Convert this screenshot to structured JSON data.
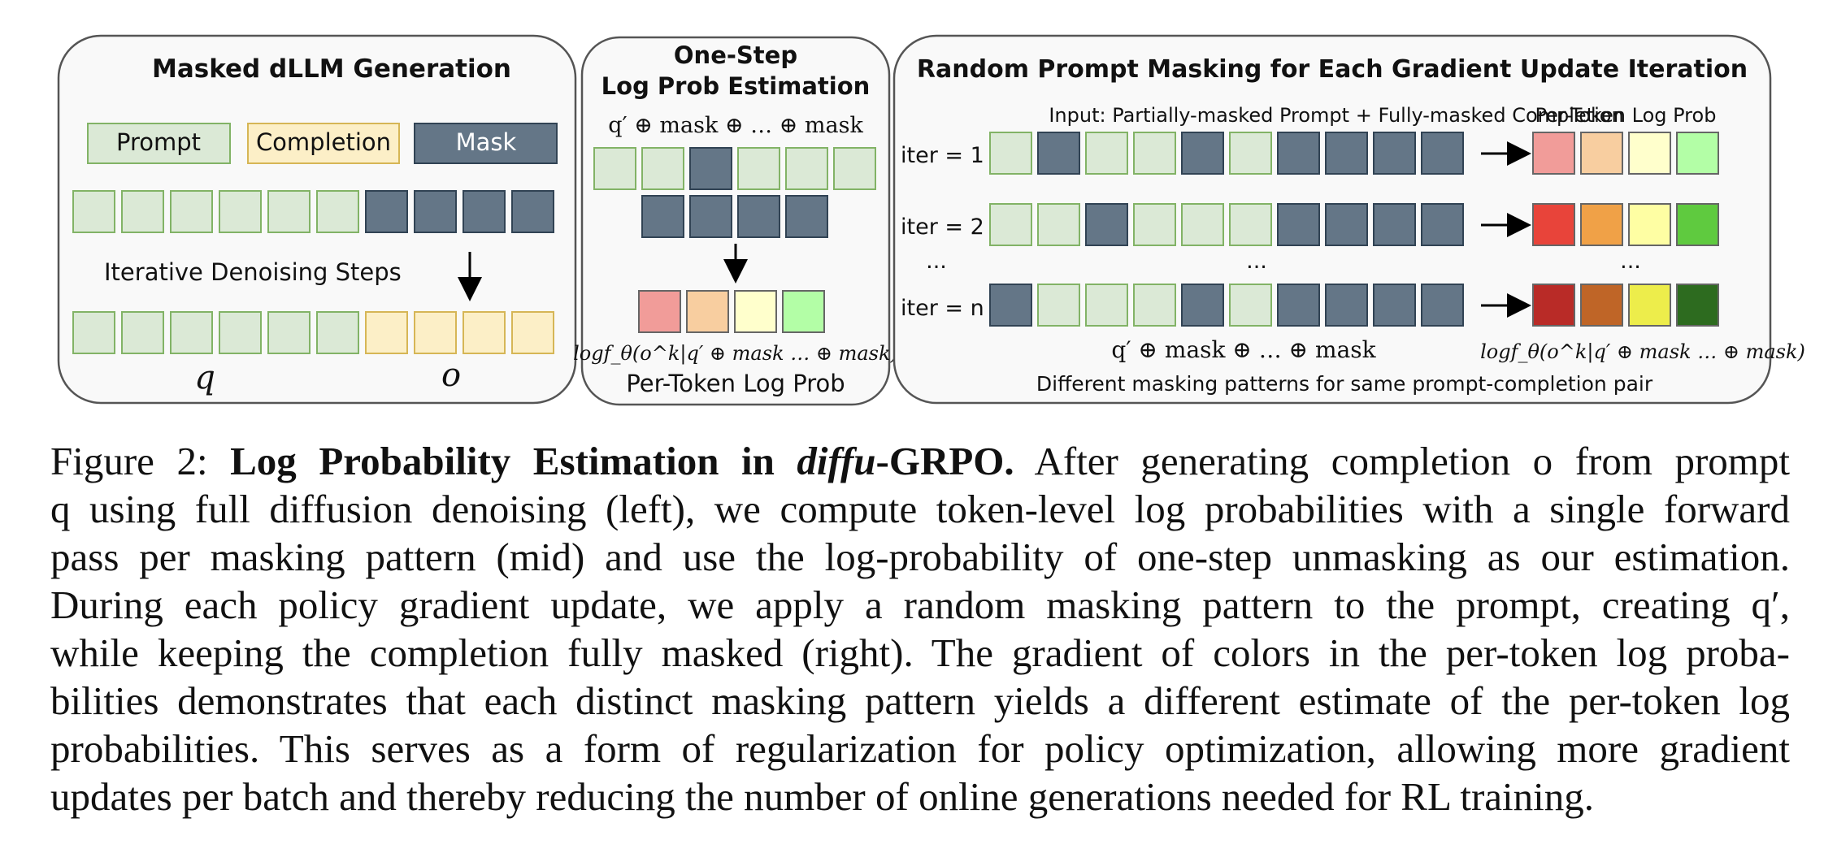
{
  "panels": {
    "left": {
      "title": "Masked dLLM Generation",
      "legend": {
        "prompt": "Prompt",
        "completion": "Completion",
        "mask": "Mask"
      },
      "steps_label": "Iterative Denoising Steps",
      "q_label": "q",
      "o_label": "o"
    },
    "middle": {
      "title_line1": "One-Step",
      "title_line2": "Log Prob Estimation",
      "formula_top": "q′ ⊕ mask ⊕ … ⊕ mask",
      "formula_bottom": "logf_θ(o^k|q′ ⊕ mask … ⊕ mask)",
      "footer": "Per-Token Log Prob"
    },
    "right": {
      "title": "Random Prompt Masking for Each Gradient Update Iteration",
      "input_label": "Input: Partially-masked Prompt + Fully-masked Completion",
      "output_label": "Per-Token Log Prob",
      "iters": [
        "iter = 1",
        "iter = 2",
        "iter = n"
      ],
      "ellipsis": "...",
      "formula_left": "q′ ⊕ mask ⊕ … ⊕ mask",
      "formula_right": "logf_θ(o^k|q′ ⊕ mask … ⊕ mask)",
      "footer": "Different masking patterns for same prompt-completion pair"
    }
  },
  "colors": {
    "prompt_fill": "#dbe9d6",
    "prompt_stroke": "#82b366",
    "completion_fill": "#fcefc7",
    "completion_stroke": "#d6b656",
    "mask_fill": "#647687",
    "mask_stroke": "#314354",
    "logprob_iter1": [
      "#f19c99",
      "#f8cea0",
      "#ffffcc",
      "#b3fea6"
    ],
    "logprob_iter2": [
      "#e8443a",
      "#f0a147",
      "#fefea3",
      "#5fca3f"
    ],
    "logprob_itern": [
      "#b92b27",
      "#bf6527",
      "#eded4b",
      "#2d6b1f"
    ]
  },
  "caption": {
    "label": "Figure 2:",
    "bold_a": "Log Probability Estimation in",
    "bold_italic": "diffu",
    "bold_b": "-GRPO.",
    "lines": [
      "After generating completion o from prompt",
      "q using full diffusion denoising (left), we compute token-level log probabilities with a single forward",
      "pass per masking pattern (mid) and use the log-probability of one-step unmasking as our estimation.",
      "During each policy gradient update, we apply a random masking pattern to the prompt, creating q′,",
      "while keeping the completion fully masked (right). The gradient of colors in the per-token log proba-",
      "bilities demonstrates that each distinct masking pattern yields a different estimate of the per-token log",
      "probabilities. This serves as a form of regularization for policy optimization, allowing more gradient",
      "updates per batch and thereby reducing the number of online generations needed for RL training."
    ]
  }
}
